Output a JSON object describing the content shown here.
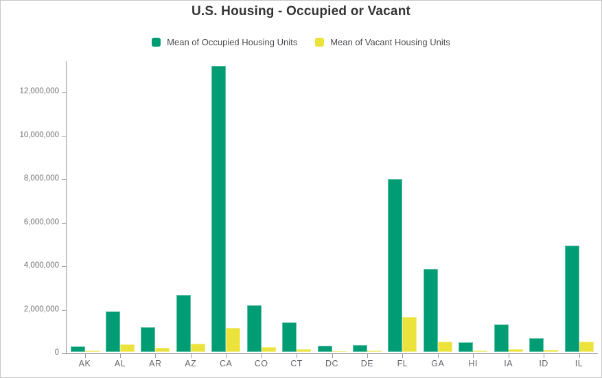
{
  "chart_data": {
    "type": "bar",
    "title": "U.S. Housing - Occupied or Vacant",
    "xlabel": "",
    "ylabel": "",
    "grid": false,
    "legend_position": "top",
    "categories": [
      "AK",
      "AL",
      "AR",
      "AZ",
      "CA",
      "CO",
      "CT",
      "DC",
      "DE",
      "FL",
      "GA",
      "HI",
      "IA",
      "ID",
      "IL"
    ],
    "series": [
      {
        "key": "occupied",
        "name": "Mean of Occupied Housing Units",
        "color": "#009c73",
        "values": [
          250000,
          1860000,
          1130000,
          2620000,
          13140000,
          2130000,
          1370000,
          270000,
          330000,
          7930000,
          3820000,
          450000,
          1250000,
          620000,
          4890000
        ]
      },
      {
        "key": "vacant",
        "name": "Mean of Vacant Housing Units",
        "color": "#ece23c",
        "values": [
          65000,
          360000,
          185000,
          375000,
          1090000,
          205000,
          120000,
          30000,
          60000,
          1610000,
          480000,
          65000,
          120000,
          80000,
          460000
        ]
      }
    ],
    "ylim": [
      0,
      13400000
    ],
    "yticks": [
      0,
      2000000,
      4000000,
      6000000,
      8000000,
      10000000,
      12000000
    ],
    "ytick_labels": [
      "0",
      "2,000,000",
      "4,000,000",
      "6,000,000",
      "8,000,000",
      "10,000,000",
      "12,000,000"
    ]
  },
  "colors": {
    "axis": "#9d9da1",
    "y_tick_label": "#6e6c72",
    "x_tick_label": "#66646c",
    "title": "#343434",
    "legend_text": "#4c4a50",
    "frame_border": "#c6c6c6",
    "background": "#ffffff"
  }
}
